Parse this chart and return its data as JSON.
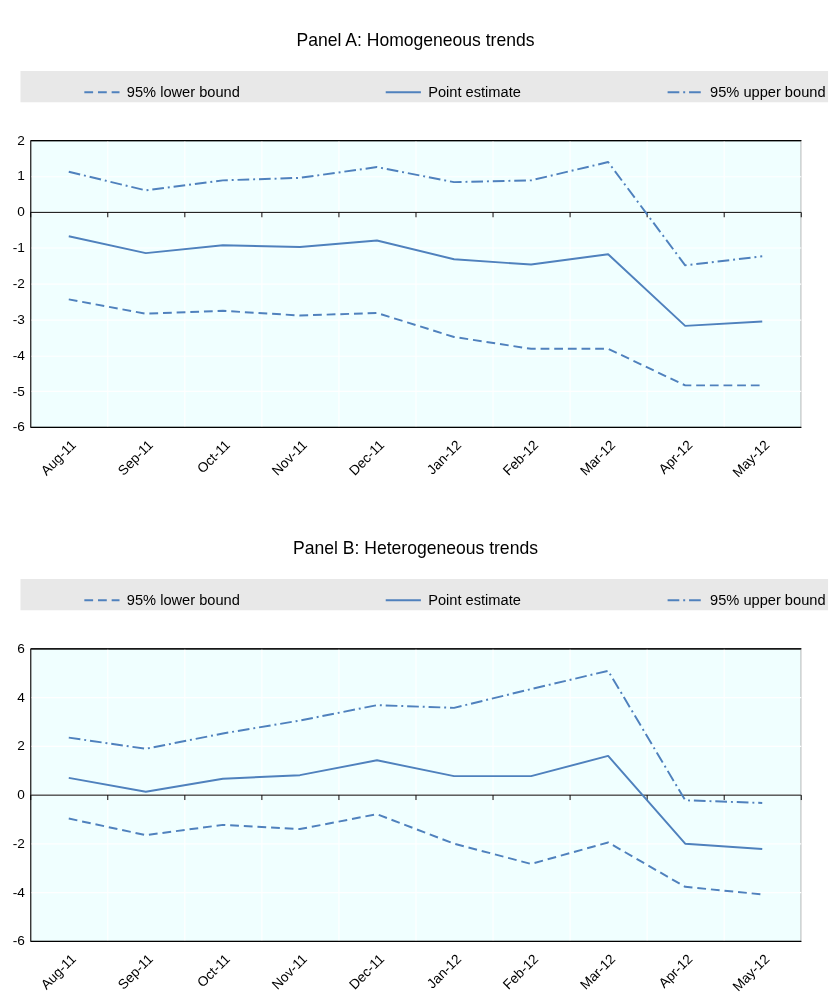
{
  "chart_data": [
    {
      "type": "line",
      "title": "Panel A: Homogeneous trends",
      "categories": [
        "Aug-11",
        "Sep-11",
        "Oct-11",
        "Nov-11",
        "Dec-11",
        "Jan-12",
        "Feb-12",
        "Mar-12",
        "Apr-12",
        "May-12"
      ],
      "series": [
        {
          "name": "95% lower bound",
          "color": "#4f81bd",
          "line_style": "dashed",
          "values": [
            -2.44,
            -2.84,
            -2.76,
            -2.89,
            -2.82,
            -3.49,
            -3.82,
            -3.82,
            -4.84,
            -4.84
          ]
        },
        {
          "name": "Point estimate",
          "color": "#4f81bd",
          "line_style": "solid",
          "values": [
            -0.68,
            -1.15,
            -0.93,
            -0.98,
            -0.8,
            -1.32,
            -1.47,
            -1.18,
            -3.18,
            -3.06
          ]
        },
        {
          "name": "95% upper bound",
          "color": "#4f81bd",
          "line_style": "dashdot",
          "values": [
            1.12,
            0.6,
            0.88,
            0.95,
            1.25,
            0.83,
            0.88,
            1.39,
            -1.49,
            -1.24
          ]
        }
      ],
      "ylim": [
        -6,
        2
      ],
      "yticks": [
        -6,
        -5,
        -4,
        -3,
        -2,
        -1,
        0,
        1,
        2
      ],
      "legend": "top",
      "grid": true
    },
    {
      "type": "line",
      "title": "Panel B: Heterogeneous trends",
      "categories": [
        "Aug-11",
        "Sep-11",
        "Oct-11",
        "Nov-11",
        "Dec-11",
        "Jan-12",
        "Feb-12",
        "Mar-12",
        "Apr-12",
        "May-12"
      ],
      "series": [
        {
          "name": "95% lower bound",
          "color": "#4f81bd",
          "line_style": "dashed",
          "values": [
            -0.98,
            -1.66,
            -1.24,
            -1.41,
            -0.8,
            -2.01,
            -2.84,
            -1.96,
            -3.78,
            -4.09
          ]
        },
        {
          "name": "Point estimate",
          "color": "#4f81bd",
          "line_style": "solid",
          "values": [
            0.69,
            0.12,
            0.65,
            0.8,
            1.41,
            0.76,
            0.76,
            1.59,
            -2.01,
            -2.23
          ]
        },
        {
          "name": "95% upper bound",
          "color": "#4f81bd",
          "line_style": "dashdot",
          "values": [
            2.34,
            1.88,
            2.51,
            3.04,
            3.67,
            3.56,
            4.33,
            5.08,
            -0.23,
            -0.34
          ]
        }
      ],
      "ylim": [
        -6,
        6
      ],
      "yticks": [
        -6,
        -4,
        -2,
        0,
        2,
        4,
        6
      ],
      "legend": "top",
      "grid": true
    }
  ]
}
